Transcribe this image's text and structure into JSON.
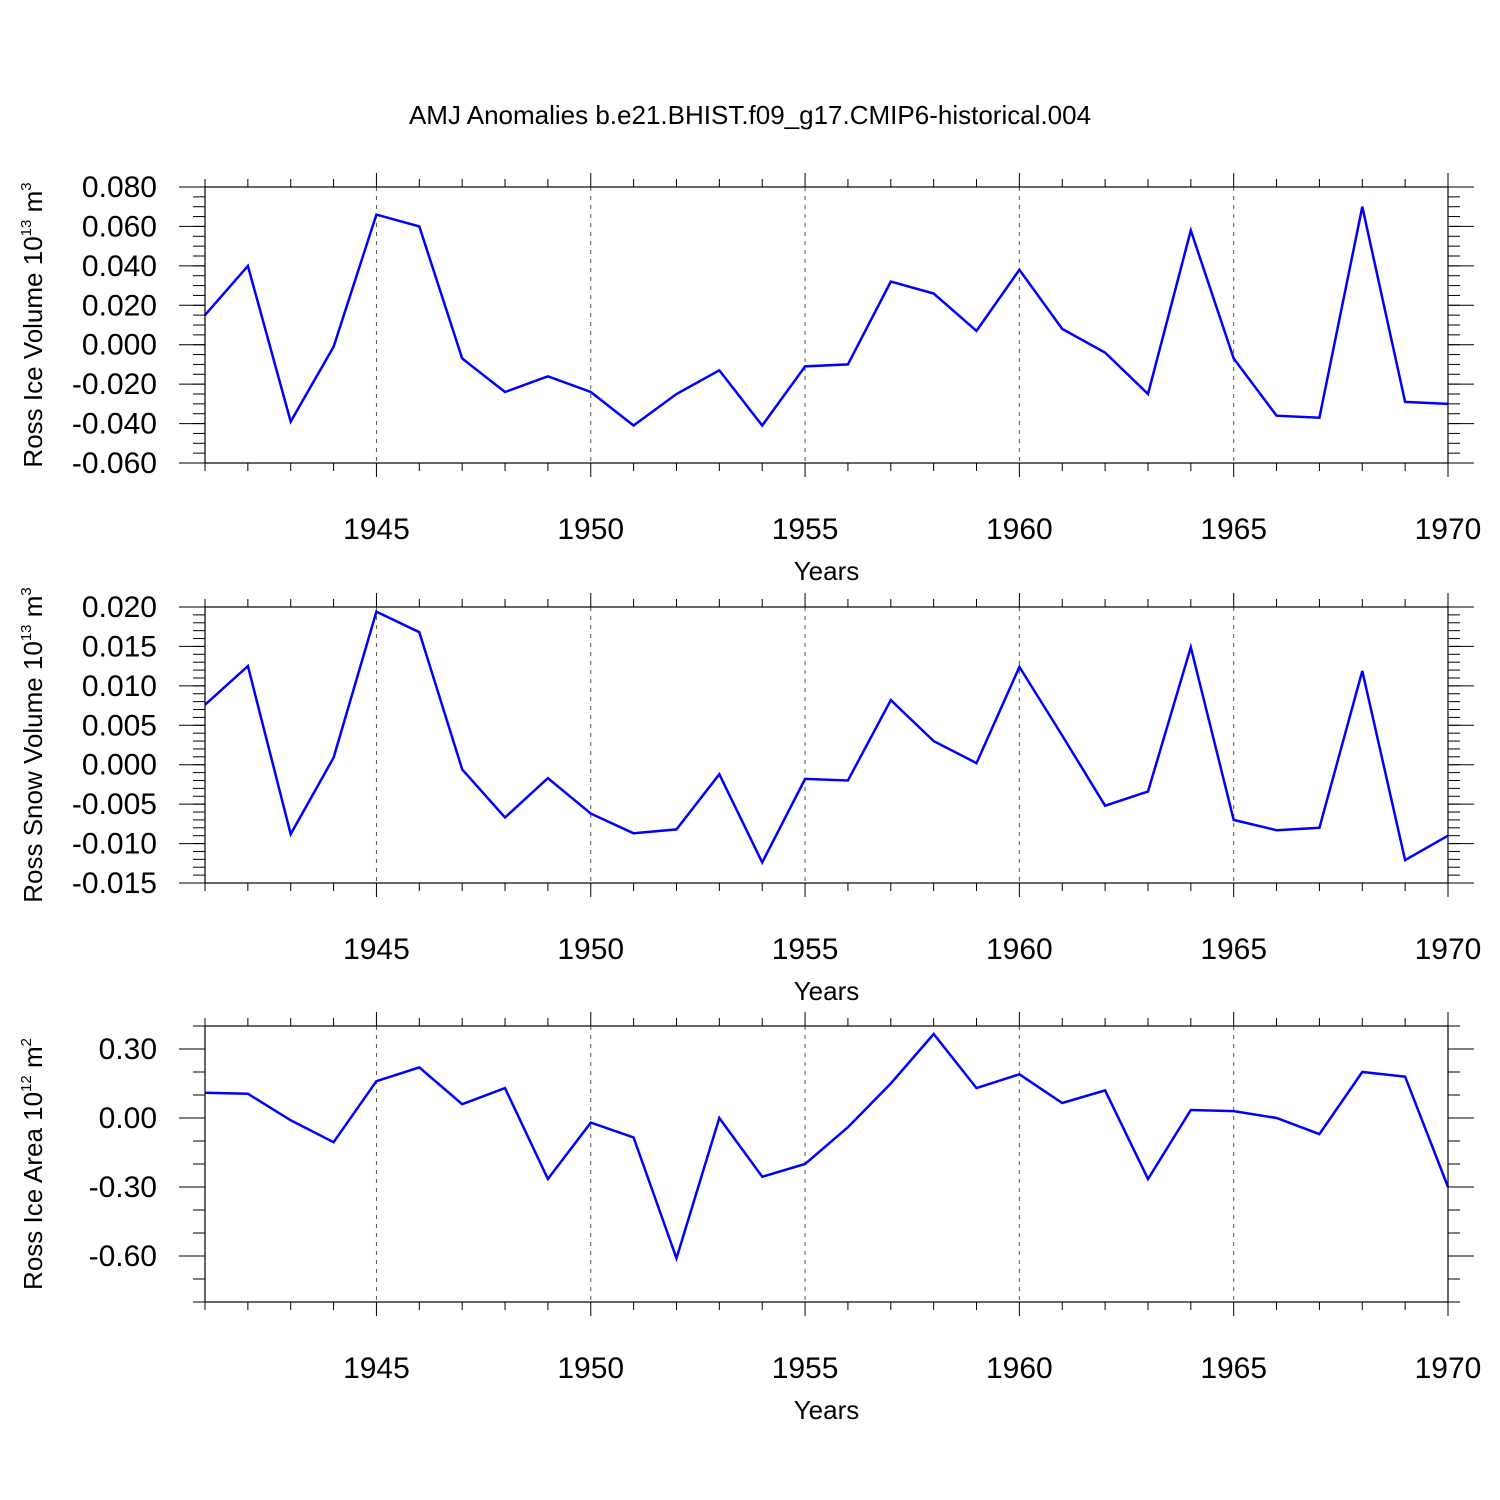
{
  "title": "AMJ Anomalies b.e21.BHIST.f09_g17.CMIP6-historical.004",
  "line_color": "#0000ff",
  "chart_data": [
    {
      "type": "line",
      "ylabel_main": "Ross Ice Volume 10",
      "ylabel_exp": "13",
      "ylabel_unit": " m",
      "ylabel_unit_exp": "3",
      "xlabel": "Years",
      "xlim": [
        1941,
        1970
      ],
      "ylim": [
        -0.06,
        0.08
      ],
      "yticks": [
        -0.06,
        -0.04,
        -0.02,
        0.0,
        0.02,
        0.04,
        0.06,
        0.08
      ],
      "ytick_labels": [
        "-0.060",
        "-0.040",
        "-0.020",
        "0.000",
        "0.020",
        "0.040",
        "0.060",
        "0.080"
      ],
      "yminor": 0.005,
      "xticks": [
        1945,
        1950,
        1955,
        1960,
        1965,
        1970
      ],
      "xtick_labels": [
        "1945",
        "1950",
        "1955",
        "1960",
        "1965",
        "1970"
      ],
      "grid": "vertical dashed at major x ticks",
      "x": [
        1941,
        1942,
        1943,
        1944,
        1945,
        1946,
        1947,
        1948,
        1949,
        1950,
        1951,
        1952,
        1953,
        1954,
        1955,
        1956,
        1957,
        1958,
        1959,
        1960,
        1961,
        1962,
        1963,
        1964,
        1965,
        1966,
        1967,
        1968,
        1969,
        1970
      ],
      "values": [
        0.015,
        0.04,
        -0.039,
        -0.001,
        0.066,
        0.06,
        -0.007,
        -0.024,
        -0.016,
        -0.024,
        -0.041,
        -0.025,
        -0.013,
        -0.041,
        -0.011,
        -0.01,
        0.032,
        0.026,
        0.007,
        0.038,
        0.008,
        -0.004,
        -0.025,
        0.058,
        -0.007,
        -0.036,
        -0.037,
        0.07,
        -0.029,
        -0.03
      ]
    },
    {
      "type": "line",
      "ylabel_main": "Ross Snow Volume 10",
      "ylabel_exp": "13",
      "ylabel_unit": " m",
      "ylabel_unit_exp": "3",
      "xlabel": "Years",
      "xlim": [
        1941,
        1970
      ],
      "ylim": [
        -0.015,
        0.02
      ],
      "yticks": [
        -0.015,
        -0.01,
        -0.005,
        0.0,
        0.005,
        0.01,
        0.015,
        0.02
      ],
      "ytick_labels": [
        "-0.015",
        "-0.010",
        "-0.005",
        "0.000",
        "0.005",
        "0.010",
        "0.015",
        "0.020"
      ],
      "yminor": 0.001,
      "xticks": [
        1945,
        1950,
        1955,
        1960,
        1965,
        1970
      ],
      "xtick_labels": [
        "1945",
        "1950",
        "1955",
        "1960",
        "1965",
        "1970"
      ],
      "grid": "vertical dashed at major x ticks",
      "x": [
        1941,
        1942,
        1943,
        1944,
        1945,
        1946,
        1947,
        1948,
        1949,
        1950,
        1951,
        1952,
        1953,
        1954,
        1955,
        1956,
        1957,
        1958,
        1959,
        1960,
        1961,
        1962,
        1963,
        1964,
        1965,
        1966,
        1967,
        1968,
        1969,
        1970
      ],
      "values": [
        0.0076,
        0.0125,
        -0.0088,
        0.0009,
        0.0194,
        0.0168,
        -0.0006,
        -0.0067,
        -0.0017,
        -0.0062,
        -0.0087,
        -0.0082,
        -0.0012,
        -0.0124,
        -0.0018,
        -0.002,
        0.0082,
        0.003,
        0.0002,
        0.0124,
        0.0037,
        -0.0052,
        -0.0034,
        0.0149,
        -0.007,
        -0.0083,
        -0.008,
        0.0119,
        -0.0121,
        -0.009
      ]
    },
    {
      "type": "line",
      "ylabel_main": "Ross Ice Area 10",
      "ylabel_exp": "12",
      "ylabel_unit": " m",
      "ylabel_unit_exp": "2",
      "xlabel": "Years",
      "xlim": [
        1941,
        1970
      ],
      "ylim": [
        -0.8,
        0.4
      ],
      "yticks": [
        -0.6,
        -0.3,
        0.0,
        0.3
      ],
      "ytick_labels": [
        "-0.60",
        "-0.30",
        "0.00",
        "0.30"
      ],
      "yminor": 0.1,
      "xticks": [
        1945,
        1950,
        1955,
        1960,
        1965,
        1970
      ],
      "xtick_labels": [
        "1945",
        "1950",
        "1955",
        "1960",
        "1965",
        "1970"
      ],
      "grid": "vertical dashed at major x ticks",
      "x": [
        1941,
        1942,
        1943,
        1944,
        1945,
        1946,
        1947,
        1948,
        1949,
        1950,
        1951,
        1952,
        1953,
        1954,
        1955,
        1956,
        1957,
        1958,
        1959,
        1960,
        1961,
        1962,
        1963,
        1964,
        1965,
        1966,
        1967,
        1968,
        1969,
        1970
      ],
      "values": [
        0.11,
        0.105,
        -0.01,
        -0.105,
        0.16,
        0.22,
        0.06,
        0.13,
        -0.265,
        -0.02,
        -0.085,
        -0.61,
        0.0,
        -0.255,
        -0.2,
        -0.04,
        0.15,
        0.365,
        0.13,
        0.19,
        0.065,
        0.12,
        -0.265,
        0.035,
        0.03,
        0.0,
        -0.07,
        0.2,
        0.18,
        -0.3
      ]
    }
  ]
}
